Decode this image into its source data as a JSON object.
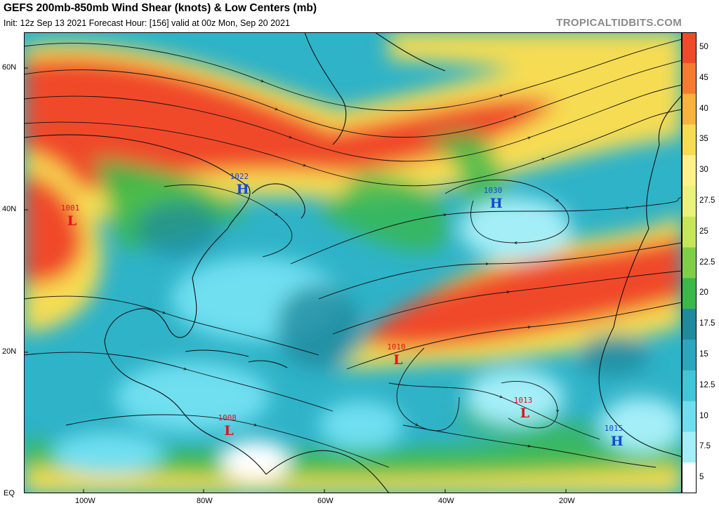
{
  "header": {
    "title": "GEFS 200mb-850mb Wind Shear (knots) & Low Centers (mb)",
    "subtitle": "Init: 12z Sep 13 2021     Forecast Hour: [156]    valid at 00z Mon, Sep 20 2021",
    "credit": "TROPICALTIDBITS.COM"
  },
  "axes": {
    "lat_labels": [
      "60N",
      "40N",
      "20N",
      "EQ"
    ],
    "lon_labels": [
      "100W",
      "80W",
      "60W",
      "40W",
      "20W"
    ]
  },
  "colorbar": {
    "ticks": [
      "50",
      "45",
      "40",
      "35",
      "30",
      "27.5",
      "25",
      "22.5",
      "20",
      "17.5",
      "15",
      "12.5",
      "10",
      "7.5",
      "5"
    ],
    "colors": [
      "#f04a2c",
      "#f57c2e",
      "#f9b23b",
      "#f6dc52",
      "#fbf28a",
      "#e9f27a",
      "#c6e65a",
      "#7fce49",
      "#3ab84a",
      "#1f8a9c",
      "#2aa6bf",
      "#41c6d8",
      "#6fdff0",
      "#a4eef8",
      "#ffffff"
    ]
  },
  "pressure_centers": [
    {
      "type": "L",
      "value": "1001",
      "lon": -102,
      "lat": 38
    },
    {
      "type": "H",
      "value": "1022",
      "lon": -74,
      "lat": 42.5
    },
    {
      "type": "H",
      "value": "1030",
      "lon": -32,
      "lat": 40.5
    },
    {
      "type": "L",
      "value": "1010",
      "lon": -48,
      "lat": 18.5
    },
    {
      "type": "L",
      "value": "1013",
      "lon": -27,
      "lat": 11
    },
    {
      "type": "L",
      "value": "1008",
      "lon": -76,
      "lat": 8.5
    },
    {
      "type": "H",
      "value": "1015",
      "lon": -12,
      "lat": 7
    }
  ]
}
